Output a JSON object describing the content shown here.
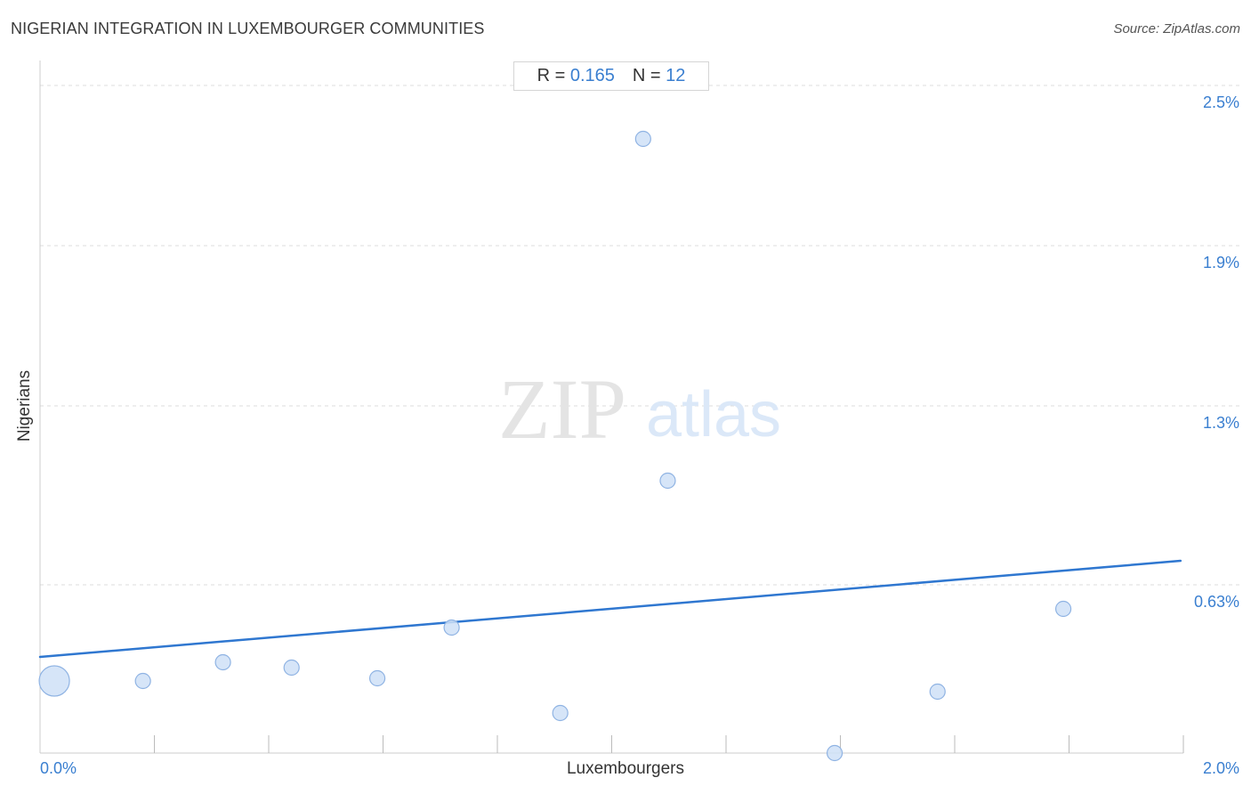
{
  "header": {
    "title": "NIGERIAN INTEGRATION IN LUXEMBOURGER COMMUNITIES",
    "source": "Source: ZipAtlas.com"
  },
  "stats": {
    "r_label": "R =",
    "r_value": "0.165",
    "n_label": "N =",
    "n_value": "12"
  },
  "watermark": {
    "zip": "ZIP",
    "atlas": "atlas"
  },
  "colors": {
    "point_fill": "#cfe0f7",
    "point_stroke": "#8fb3e3",
    "trend_line": "#2f77d0",
    "tick_label": "#3a7fd0",
    "grid": "#dddddd"
  },
  "chart_data": {
    "type": "scatter",
    "xlabel": "Luxembourgers",
    "ylabel": "Nigerians",
    "xlim": [
      0,
      2.0
    ],
    "ylim": [
      0,
      2.56
    ],
    "x_tick_labels": [
      {
        "value": 0,
        "label": "0.0%"
      },
      {
        "value": 2.0,
        "label": "2.0%"
      }
    ],
    "y_ticks": [
      {
        "value": 0.63,
        "label": "0.63%"
      },
      {
        "value": 1.3,
        "label": "1.3%"
      },
      {
        "value": 1.9,
        "label": "1.9%"
      },
      {
        "value": 2.5,
        "label": "2.5%"
      }
    ],
    "x_minor_ticks": [
      0.2,
      0.4,
      0.6,
      0.8,
      1.0,
      1.2,
      1.4,
      1.6,
      1.8,
      2.0
    ],
    "points": [
      {
        "x": 0.025,
        "y": 0.27,
        "size": "large"
      },
      {
        "x": 0.18,
        "y": 0.27,
        "size": "small"
      },
      {
        "x": 0.32,
        "y": 0.34,
        "size": "small"
      },
      {
        "x": 0.44,
        "y": 0.32,
        "size": "small"
      },
      {
        "x": 0.59,
        "y": 0.28,
        "size": "small"
      },
      {
        "x": 0.72,
        "y": 0.47,
        "size": "small"
      },
      {
        "x": 0.91,
        "y": 0.15,
        "size": "small"
      },
      {
        "x": 1.055,
        "y": 2.3,
        "size": "small"
      },
      {
        "x": 1.098,
        "y": 1.02,
        "size": "small"
      },
      {
        "x": 1.39,
        "y": 0.0,
        "size": "small"
      },
      {
        "x": 1.57,
        "y": 0.23,
        "size": "small"
      },
      {
        "x": 1.79,
        "y": 0.54,
        "size": "small"
      }
    ],
    "trend": {
      "x": [
        0,
        1.995
      ],
      "y": [
        0.36,
        0.72
      ]
    },
    "grid": true
  }
}
